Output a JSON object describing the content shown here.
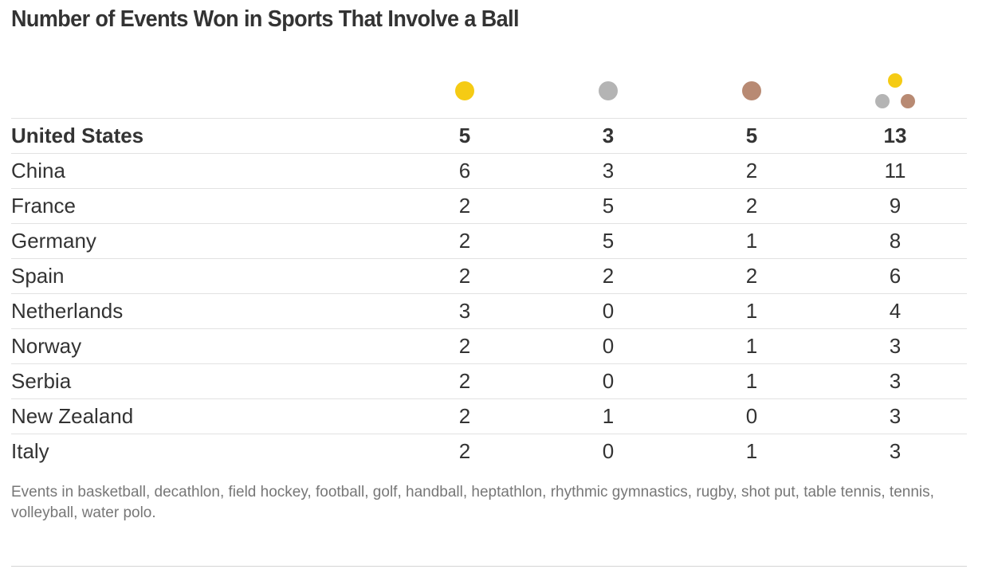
{
  "title": "Number of Events Won in Sports That Involve a Ball",
  "colors": {
    "gold": "#f5cb14",
    "silver": "#b4b4b4",
    "bronze": "#b88a73"
  },
  "columns": [
    {
      "icon": "gold-medal-icon"
    },
    {
      "icon": "silver-medal-icon"
    },
    {
      "icon": "bronze-medal-icon"
    },
    {
      "icon": "total-medals-icon"
    }
  ],
  "chart_data": {
    "type": "table",
    "title": "Number of Events Won in Sports That Involve a Ball",
    "columns": [
      "Gold",
      "Silver",
      "Bronze",
      "Total"
    ],
    "rows": [
      {
        "country": "United States",
        "gold": "5",
        "silver": "3",
        "bronze": "5",
        "total": "13"
      },
      {
        "country": "China",
        "gold": "6",
        "silver": "3",
        "bronze": "2",
        "total": "11"
      },
      {
        "country": "France",
        "gold": "2",
        "silver": "5",
        "bronze": "2",
        "total": "9"
      },
      {
        "country": "Germany",
        "gold": "2",
        "silver": "5",
        "bronze": "1",
        "total": "8"
      },
      {
        "country": "Spain",
        "gold": "2",
        "silver": "2",
        "bronze": "2",
        "total": "6"
      },
      {
        "country": "Netherlands",
        "gold": "3",
        "silver": "0",
        "bronze": "1",
        "total": "4"
      },
      {
        "country": "Norway",
        "gold": "2",
        "silver": "0",
        "bronze": "1",
        "total": "3"
      },
      {
        "country": "Serbia",
        "gold": "2",
        "silver": "0",
        "bronze": "1",
        "total": "3"
      },
      {
        "country": "New Zealand",
        "gold": "2",
        "silver": "1",
        "bronze": "0",
        "total": "3"
      },
      {
        "country": "Italy",
        "gold": "2",
        "silver": "0",
        "bronze": "1",
        "total": "3"
      }
    ]
  },
  "note": "Events in basketball, decathlon, field hockey, football, golf, handball, heptathlon, rhythmic gymnastics, rugby, shot put, table tennis, tennis, volleyball, water polo."
}
